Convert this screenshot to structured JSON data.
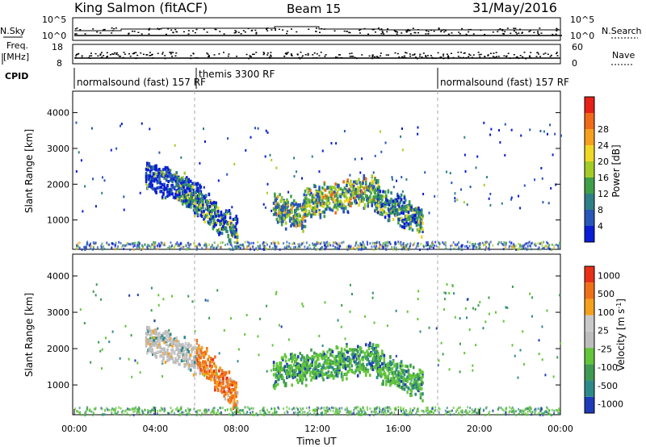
{
  "header": {
    "station": "King Salmon (fitACF)",
    "beam": "Beam 15",
    "date": "31/May/2016"
  },
  "status_panels": {
    "nsky_label": "N.Sky",
    "nsky_ticks": [
      "10^5",
      "10^0"
    ],
    "freq_label_1": "Freq.",
    "freq_label_2": "[MHz]",
    "freq_ticks": [
      "18",
      "8"
    ],
    "cpid_label": "CPID",
    "nsearch_label": "N.Search",
    "nsearch_ticks": [
      "10^5",
      "10^0"
    ],
    "nave_label": "Nave",
    "nave_ticks": [
      "60",
      "0"
    ],
    "cpid_segments": [
      {
        "label": "normalsound (fast) 157 RF",
        "start": "00:00"
      },
      {
        "label": "themis 3300 RF",
        "start": "06:00"
      },
      {
        "label": "normalsound (fast) 157 RF",
        "start": "18:00"
      }
    ]
  },
  "chart_data": [
    {
      "type": "heatmap",
      "parameter": "power",
      "ylabel": "Slant Range [km]",
      "yticks": [
        1000,
        2000,
        3000,
        4000
      ],
      "ylim": [
        180,
        4600
      ],
      "xlim": [
        0,
        24
      ],
      "colorbar_label": "Power [dB]",
      "colorbar_ticks": [
        "4",
        "8",
        "12",
        "16",
        "20",
        "24",
        "28"
      ],
      "colorbar_colors": [
        "#0a1cd6",
        "#2857b8",
        "#2f7f86",
        "#3fa04a",
        "#a4cc28",
        "#f0d826",
        "#f7a020",
        "#f06a1a",
        "#e8201a"
      ],
      "echo_regions": [
        {
          "t_start": 3.5,
          "t_end": 6.2,
          "range_start": 2300,
          "range_end": 1700,
          "dominant": "blue"
        },
        {
          "t_start": 5.0,
          "t_end": 8.0,
          "range_start": 2000,
          "range_end": 700,
          "dominant": "green-blue"
        },
        {
          "t_start": 9.8,
          "t_end": 11.4,
          "range_start": 1400,
          "range_end": 1100,
          "dominant": "green"
        },
        {
          "t_start": 11.3,
          "t_end": 15.0,
          "range_start": 1500,
          "range_end": 1900,
          "dominant": "green-yellow"
        },
        {
          "t_start": 14.8,
          "t_end": 17.2,
          "range_start": 1600,
          "range_end": 1000,
          "dominant": "green-blue"
        }
      ]
    },
    {
      "type": "heatmap",
      "parameter": "velocity",
      "ylabel": "Slant Range [km]",
      "yticks": [
        1000,
        2000,
        3000,
        4000
      ],
      "ylim": [
        180,
        4600
      ],
      "xlim": [
        0,
        24
      ],
      "xticks": [
        "00:00",
        "04:00",
        "08:00",
        "12:00",
        "16:00",
        "20:00",
        "00:00"
      ],
      "xlabel": "Time UT",
      "colorbar_label": "Velocity [m s-1]",
      "colorbar_ticks": [
        "1000",
        "500",
        "100",
        "25",
        "-25",
        "-100",
        "-500",
        "-1000"
      ],
      "colorbar_colors": [
        "#1d3ab8",
        "#2e8a8a",
        "#3f9a52",
        "#63c53a",
        "#bdbdbd",
        "#c9c9c9",
        "#f5a01e",
        "#f07018",
        "#e83018"
      ],
      "echo_regions": [
        {
          "t_start": 3.5,
          "t_end": 6.2,
          "range_start": 2300,
          "range_end": 1700,
          "dominant": "gray"
        },
        {
          "t_start": 6.0,
          "t_end": 8.0,
          "range_start": 1900,
          "range_end": 700,
          "dominant": "orange"
        },
        {
          "t_start": 9.8,
          "t_end": 15.0,
          "range_start": 1400,
          "range_end": 1800,
          "dominant": "green"
        },
        {
          "t_start": 14.8,
          "t_end": 17.2,
          "range_start": 1600,
          "range_end": 1000,
          "dominant": "green"
        }
      ],
      "dashed_markers": [
        "06:00",
        "18:00"
      ]
    }
  ]
}
